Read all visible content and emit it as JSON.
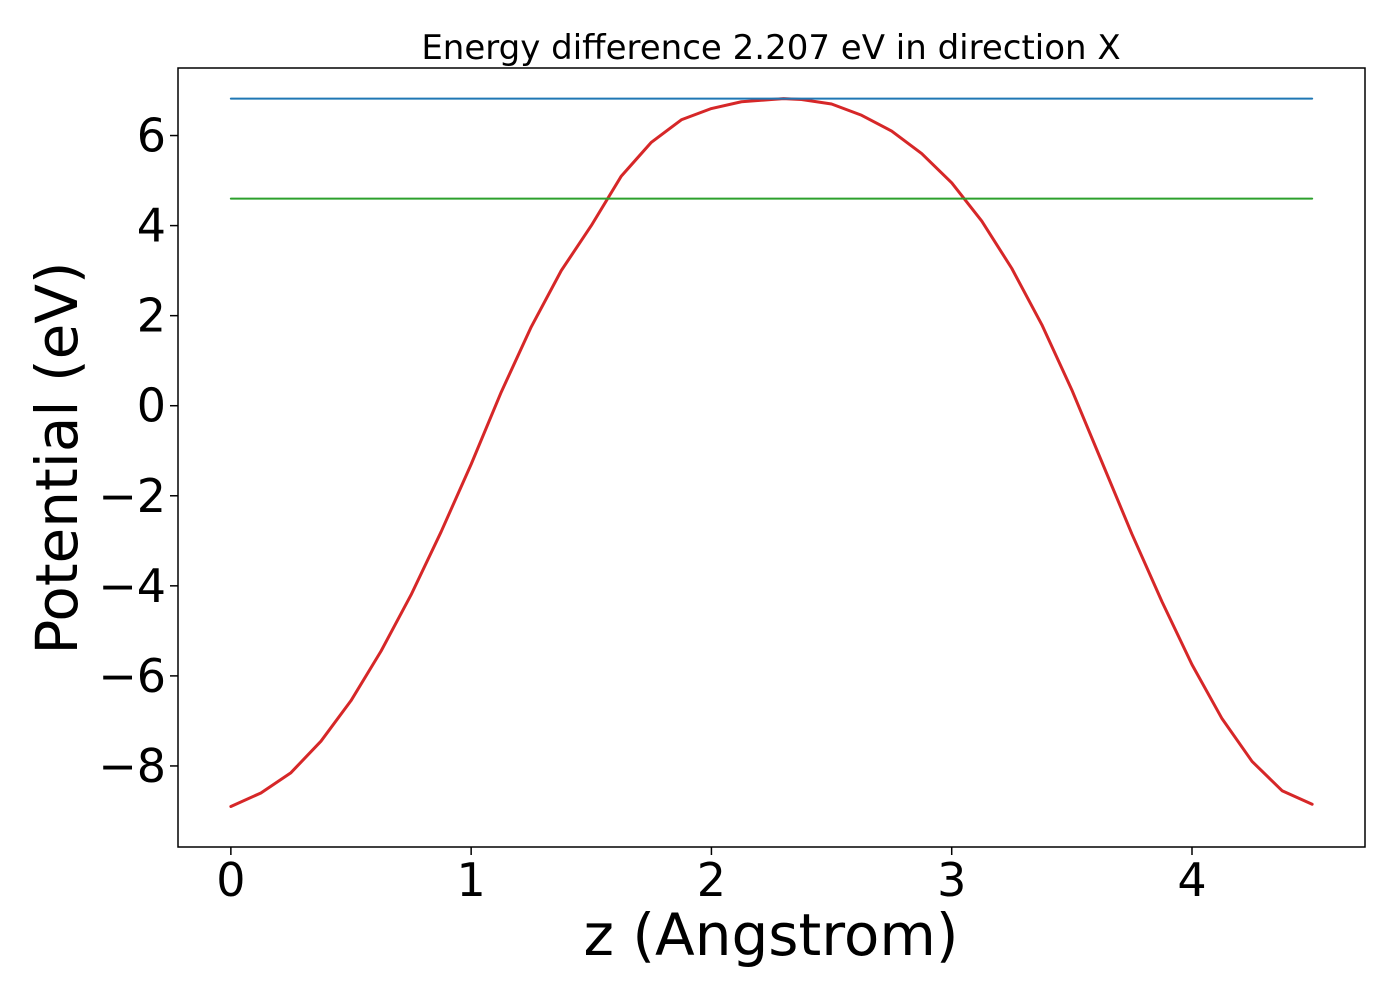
{
  "chart_data": {
    "type": "line",
    "title": "Energy difference 2.207 eV in direction X",
    "xlabel": "z (Angstrom)",
    "ylabel": "Potential (eV)",
    "xlim": [
      -0.22,
      4.72
    ],
    "ylim": [
      -9.8,
      7.5
    ],
    "xticks": [
      0,
      1,
      2,
      3,
      4
    ],
    "yticks": [
      -8,
      -6,
      -4,
      -2,
      0,
      2,
      4,
      6
    ],
    "xtick_labels": [
      "0",
      "1",
      "2",
      "3",
      "4"
    ],
    "ytick_labels": [
      "−8",
      "−6",
      "−4",
      "−2",
      "0",
      "2",
      "4",
      "6"
    ],
    "grid": false,
    "colors": {
      "potential": "#d62728",
      "max_line": "#1f77b4",
      "mean_line": "#2ca02c"
    },
    "series": [
      {
        "key": "potential",
        "x": [
          0.0,
          0.125,
          0.25,
          0.375,
          0.5,
          0.625,
          0.75,
          0.875,
          1.0,
          1.125,
          1.25,
          1.375,
          1.5,
          1.625,
          1.75,
          1.875,
          2.0,
          2.125,
          2.25,
          2.3,
          2.375,
          2.5,
          2.625,
          2.75,
          2.875,
          3.0,
          3.125,
          3.25,
          3.375,
          3.5,
          3.625,
          3.75,
          3.875,
          4.0,
          4.125,
          4.25,
          4.375,
          4.5
        ],
        "y": [
          -8.9,
          -8.6,
          -8.15,
          -7.45,
          -6.55,
          -5.45,
          -4.2,
          -2.8,
          -1.3,
          0.3,
          1.75,
          3.0,
          4.0,
          5.1,
          5.85,
          6.35,
          6.6,
          6.75,
          6.8,
          6.82,
          6.8,
          6.7,
          6.45,
          6.1,
          5.6,
          4.95,
          4.1,
          3.05,
          1.8,
          0.35,
          -1.25,
          -2.85,
          -4.35,
          -5.75,
          -6.95,
          -7.9,
          -8.55,
          -8.85
        ]
      },
      {
        "key": "max_line",
        "x": [
          0.0,
          4.5
        ],
        "y": [
          6.82,
          6.82
        ]
      },
      {
        "key": "mean_line",
        "x": [
          0.0,
          4.5
        ],
        "y": [
          4.6,
          4.6
        ]
      }
    ]
  }
}
